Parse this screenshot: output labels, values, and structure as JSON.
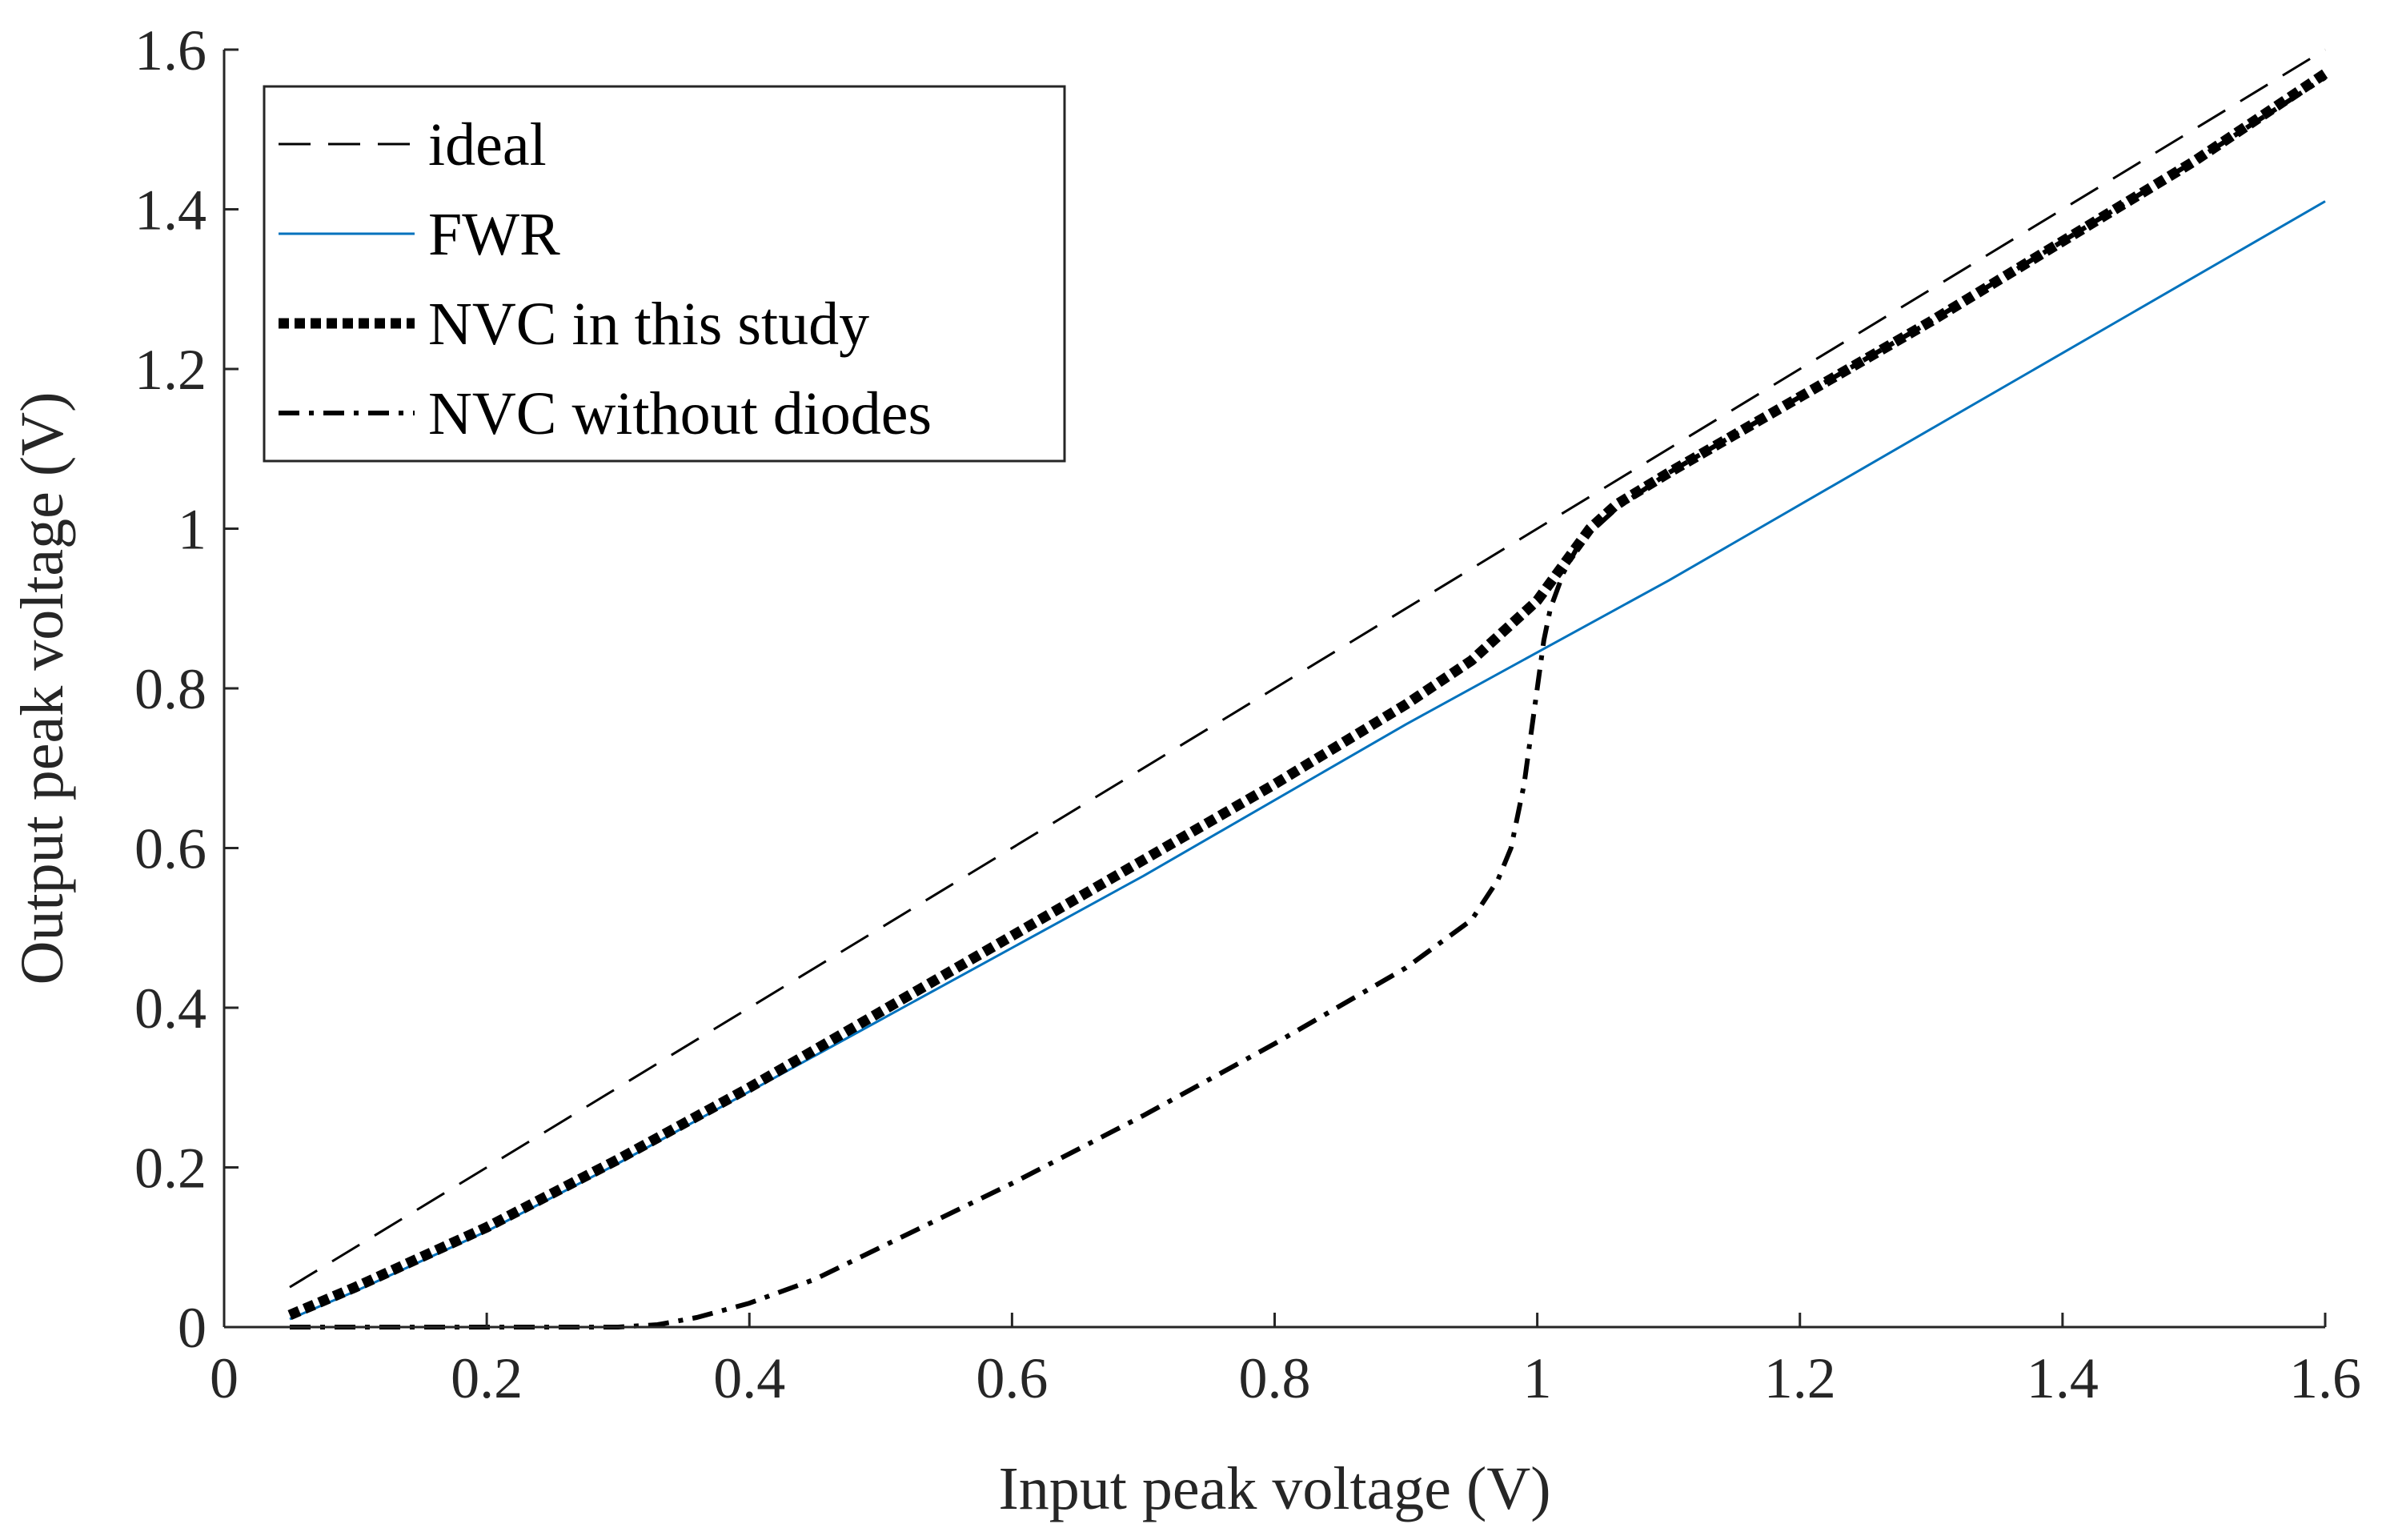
{
  "chart_data": {
    "type": "line",
    "title": "",
    "xlabel": "Input peak voltage (V)",
    "ylabel": "Output peak voltage (V)",
    "xlim": [
      0,
      1.6
    ],
    "ylim": [
      0,
      1.6
    ],
    "xticks": [
      "0",
      "0.2",
      "0.4",
      "0.6",
      "0.8",
      "1",
      "1.2",
      "1.4",
      "1.6"
    ],
    "yticks": [
      "0",
      "0.2",
      "0.4",
      "0.6",
      "0.8",
      "1",
      "1.2",
      "1.4",
      "1.6"
    ],
    "grid": false,
    "legend_position": "top-left",
    "series": [
      {
        "name": "ideal",
        "style": "dashed",
        "color": "#000000",
        "x": [
          0.05,
          1.6
        ],
        "y": [
          0.05,
          1.6
        ]
      },
      {
        "name": "FWR",
        "style": "solid",
        "color": "#0072BD",
        "x": [
          0.05,
          0.1,
          0.2,
          0.3,
          0.4,
          0.5,
          0.6,
          0.7,
          0.8,
          0.9,
          1.0,
          1.1,
          1.2,
          1.3,
          1.4,
          1.5,
          1.6
        ],
        "y": [
          0.01,
          0.045,
          0.12,
          0.205,
          0.295,
          0.385,
          0.475,
          0.565,
          0.66,
          0.755,
          0.845,
          0.935,
          1.03,
          1.125,
          1.22,
          1.315,
          1.41
        ]
      },
      {
        "name": "NVC in this study",
        "style": "dotted-thick",
        "color": "#000000",
        "x": [
          0.05,
          0.1,
          0.2,
          0.3,
          0.4,
          0.5,
          0.6,
          0.7,
          0.8,
          0.9,
          0.95,
          1.0,
          1.02,
          1.04,
          1.06,
          1.1,
          1.2,
          1.3,
          1.4,
          1.5,
          1.6
        ],
        "y": [
          0.015,
          0.05,
          0.125,
          0.21,
          0.3,
          0.395,
          0.49,
          0.585,
          0.68,
          0.78,
          0.835,
          0.91,
          0.955,
          1.0,
          1.03,
          1.07,
          1.165,
          1.26,
          1.36,
          1.46,
          1.57
        ]
      },
      {
        "name": "NVC without diodes",
        "style": "dash-dot",
        "color": "#000000",
        "x": [
          0.05,
          0.1,
          0.2,
          0.3,
          0.33,
          0.36,
          0.4,
          0.45,
          0.5,
          0.6,
          0.7,
          0.8,
          0.9,
          0.95,
          0.97,
          0.98,
          0.99,
          1.0,
          1.005,
          1.01,
          1.02,
          1.03,
          1.04,
          1.06,
          1.1,
          1.2,
          1.3,
          1.4,
          1.5,
          1.6
        ],
        "y": [
          0.0,
          0.0,
          0.0,
          0.0,
          0.003,
          0.012,
          0.03,
          0.06,
          0.1,
          0.18,
          0.265,
          0.355,
          0.45,
          0.51,
          0.56,
          0.6,
          0.68,
          0.8,
          0.86,
          0.9,
          0.945,
          0.975,
          0.995,
          1.025,
          1.07,
          1.165,
          1.26,
          1.36,
          1.46,
          1.565
        ]
      }
    ]
  }
}
